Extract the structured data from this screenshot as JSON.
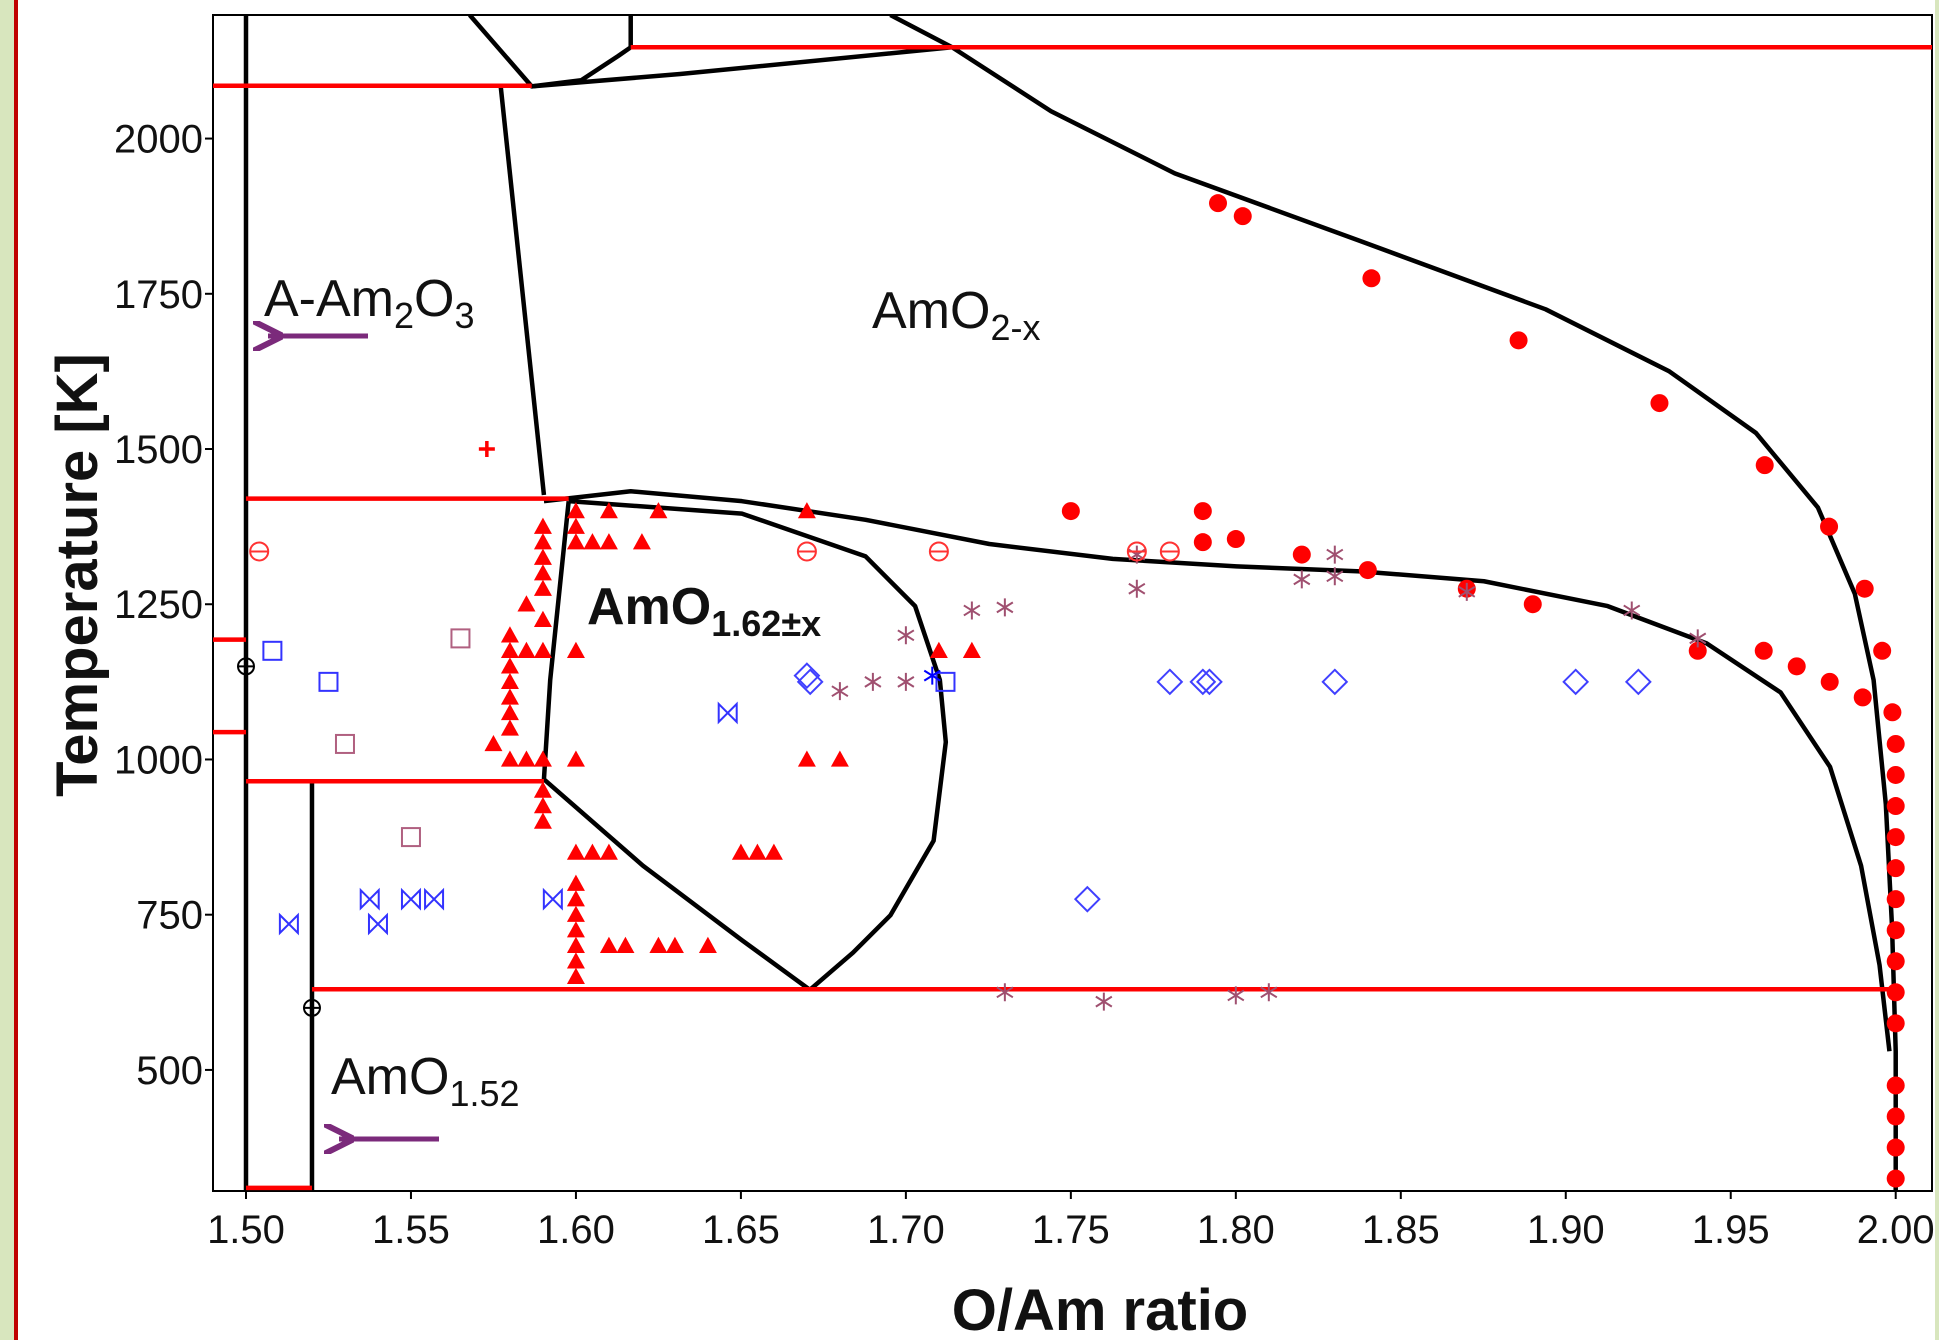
{
  "chart_data": {
    "type": "scatter",
    "x_label": "O/Am ratio",
    "y_label": "Temperature [K]",
    "xlim": [
      1.49,
      2.011
    ],
    "ylim": [
      305,
      2199
    ],
    "xticks": [
      {
        "value": 1.5,
        "label": "1.50"
      },
      1.55,
      {
        "value": 1.6,
        "label": "1.60"
      },
      1.65,
      {
        "value": 1.7,
        "label": "1.70"
      },
      1.75,
      {
        "value": 1.8,
        "label": "1.80"
      },
      1.85,
      {
        "value": 1.9,
        "label": "1.90"
      },
      1.95,
      {
        "value": 2.0,
        "label": "2.00"
      }
    ],
    "yticks": [
      500,
      750,
      1000,
      1250,
      1500,
      1750,
      2000
    ],
    "annotations": [
      {
        "parts": [
          "A-Am",
          "2",
          "O",
          "3"
        ],
        "bold": false
      },
      {
        "parts": [
          "AmO",
          "2-x"
        ],
        "bold": false
      },
      {
        "parts": [
          "AmO",
          "1.62±x"
        ],
        "bold": true
      },
      {
        "parts": [
          "AmO",
          "1.52"
        ],
        "bold": false
      }
    ],
    "lines": [
      {
        "color": "#000000",
        "x": [
          1.5,
          1.5
        ],
        "values": [
          305,
          2199
        ]
      },
      {
        "color": "#000000",
        "x": [
          1.52,
          1.52
        ],
        "values": [
          305,
          965
        ]
      },
      {
        "color": "#000000",
        "x": [
          1.6953,
          1.714,
          1.744,
          1.7815,
          1.8377,
          1.8939,
          1.9314,
          1.9576,
          1.9764,
          1.9876,
          1.9933,
          1.997,
          1.9989,
          2.0,
          2.0
        ],
        "values": [
          2199,
          2147,
          2044,
          1944,
          1835,
          1725,
          1625,
          1526,
          1406,
          1267,
          1128,
          928,
          729,
          530,
          305
        ]
      },
      {
        "color": "#000000",
        "x": [
          1.5903,
          1.6166,
          1.6503,
          1.6878,
          1.7253,
          1.7627,
          1.8002,
          1.8377,
          1.8752,
          1.9127,
          1.9427,
          1.9651,
          1.9801,
          1.9895,
          1.9951,
          1.9981
        ],
        "values": [
          1416,
          1432,
          1416,
          1386,
          1347,
          1323,
          1311,
          1303,
          1287,
          1247,
          1187,
          1108,
          988,
          829,
          669,
          530
        ]
      },
      {
        "color": "#000000",
        "x": [
          1.5978,
          1.6503,
          1.6878,
          1.7028,
          1.7103,
          1.7121,
          1.7084,
          1.6953,
          1.684,
          1.6709
        ],
        "values": [
          1416,
          1396,
          1327,
          1247,
          1128,
          1028,
          869,
          749,
          689,
          629
        ]
      },
      {
        "color": "#000000",
        "x": [
          1.5978,
          1.5922,
          1.5903,
          1.6203,
          1.6503,
          1.6709
        ],
        "values": [
          1416,
          1128,
          968,
          829,
          709,
          629
        ]
      },
      {
        "color": "#000000",
        "x": [
          1.5772,
          1.5903
        ],
        "values": [
          2084,
          1426
        ]
      },
      {
        "color": "#000000",
        "x": [
          1.5678,
          1.5866,
          1.6016,
          1.6128,
          1.6166,
          1.6166
        ],
        "values": [
          2199,
          2084,
          2094,
          2133,
          2147,
          2199
        ]
      },
      {
        "color": "#000000",
        "x": [
          1.5866,
          1.6316,
          1.714
        ],
        "values": [
          2084,
          2104,
          2147
        ]
      },
      {
        "color": "#ff0000",
        "x": [
          1.6166,
          2.011
        ],
        "values": [
          2147,
          2147
        ]
      },
      {
        "color": "#ff0000",
        "x": [
          1.49,
          1.5866
        ],
        "values": [
          2085,
          2085
        ]
      },
      {
        "color": "#ff0000",
        "x": [
          1.5,
          1.5978
        ],
        "values": [
          1420,
          1420
        ]
      },
      {
        "color": "#ff0000",
        "x": [
          1.5,
          1.5903
        ],
        "values": [
          965,
          965
        ]
      },
      {
        "color": "#ff0000",
        "x": [
          1.52,
          2.0
        ],
        "values": [
          630,
          630
        ]
      },
      {
        "color": "#ff0000",
        "x": [
          1.5,
          1.52
        ],
        "values": [
          310,
          310
        ]
      },
      {
        "color": "#ff0000",
        "x": [
          1.49,
          1.5
        ],
        "values": [
          1193,
          1193
        ]
      },
      {
        "color": "#ff0000",
        "x": [
          1.49,
          1.5
        ],
        "values": [
          1044,
          1044
        ]
      }
    ],
    "series": [
      {
        "marker": "circle",
        "color": "#ff0000",
        "x": [
          1.7946,
          1.8021,
          1.8411,
          1.8857,
          1.9284,
          1.9603,
          1.9798,
          1.9906,
          1.9959,
          1.999,
          2.0,
          2.0,
          2.0,
          2.0,
          2.0,
          2.0,
          2.0,
          2.0,
          2.0,
          2.0,
          2.0,
          2.0,
          2.0,
          2.0,
          1.75,
          1.79,
          1.79,
          1.8,
          1.82,
          1.84,
          1.87,
          1.89,
          1.94,
          1.96,
          1.97,
          1.98,
          1.99
        ],
        "values": [
          1896,
          1875,
          1775,
          1675,
          1574,
          1474,
          1375,
          1275,
          1175,
          1076,
          1025,
          975,
          875,
          825,
          775,
          725,
          675,
          625,
          575,
          475,
          425,
          375,
          325,
          925,
          1400,
          1400,
          1350,
          1355,
          1330,
          1305,
          1275,
          1250,
          1175,
          1175,
          1150,
          1125,
          1100
        ]
      },
      {
        "marker": "triangle",
        "color": "#ff0000",
        "x": [
          1.6,
          1.6,
          1.6,
          1.605,
          1.61,
          1.61,
          1.62,
          1.625,
          1.59,
          1.59,
          1.59,
          1.59,
          1.59,
          1.585,
          1.59,
          1.58,
          1.58,
          1.58,
          1.58,
          1.58,
          1.58,
          1.58,
          1.575,
          1.58,
          1.585,
          1.59,
          1.6,
          1.585,
          1.59,
          1.6,
          1.59,
          1.59,
          1.59,
          1.6,
          1.605,
          1.61,
          1.6,
          1.6,
          1.6,
          1.6,
          1.6,
          1.6,
          1.6,
          1.61,
          1.615,
          1.625,
          1.63,
          1.64,
          1.65,
          1.655,
          1.66,
          1.67,
          1.67,
          1.68,
          1.71,
          1.72
        ],
        "values": [
          1400,
          1375,
          1350,
          1350,
          1350,
          1400,
          1350,
          1400,
          1375,
          1350,
          1325,
          1300,
          1275,
          1250,
          1225,
          1200,
          1175,
          1150,
          1125,
          1100,
          1075,
          1050,
          1025,
          1000,
          1000,
          1000,
          1000,
          1175,
          1175,
          1175,
          950,
          925,
          900,
          850,
          850,
          850,
          800,
          775,
          750,
          725,
          700,
          675,
          650,
          700,
          700,
          700,
          700,
          700,
          850,
          850,
          850,
          1400,
          1000,
          1000,
          1175,
          1175
        ]
      },
      {
        "marker": "square",
        "color": "#3333ff",
        "x": [
          1.508,
          1.525,
          1.712
        ],
        "values": [
          1175,
          1125,
          1125
        ]
      },
      {
        "marker": "square",
        "color": "#b06080",
        "x": [
          1.565,
          1.53,
          1.55
        ],
        "values": [
          1195,
          1025,
          875
        ]
      },
      {
        "marker": "diamond",
        "color": "#4040ff",
        "x": [
          1.67,
          1.671,
          1.78,
          1.79,
          1.792,
          1.83,
          1.903,
          1.922,
          1.755
        ],
        "values": [
          1135,
          1125,
          1125,
          1125,
          1125,
          1125,
          1125,
          1125,
          775
        ]
      },
      {
        "marker": "bowtie",
        "color": "#3333ff",
        "x": [
          1.513,
          1.5375,
          1.54,
          1.55,
          1.557,
          1.593,
          1.646
        ],
        "values": [
          735,
          775,
          735,
          775,
          775,
          775,
          1075
        ]
      },
      {
        "marker": "asterisk",
        "color": "#a05070",
        "x": [
          1.68,
          1.69,
          1.7,
          1.7,
          1.72,
          1.73,
          1.77,
          1.77,
          1.82,
          1.83,
          1.83,
          1.87,
          1.92,
          1.94,
          1.73,
          1.76,
          1.8,
          1.81
        ],
        "values": [
          1110,
          1125,
          1125,
          1200,
          1240,
          1245,
          1330,
          1275,
          1290,
          1330,
          1295,
          1270,
          1240,
          1195,
          625,
          610,
          620,
          625
        ]
      },
      {
        "marker": "asterisk",
        "color": "#0000ff",
        "x": [
          1.708
        ],
        "values": [
          1135
        ]
      },
      {
        "marker": "circle-minus",
        "color": "#ff3333",
        "x": [
          1.504,
          1.67,
          1.71,
          1.77,
          1.78
        ],
        "values": [
          1335,
          1335,
          1335,
          1335,
          1335
        ]
      },
      {
        "marker": "plus",
        "color": "#ff0000",
        "x": [
          1.573
        ],
        "values": [
          1500
        ]
      },
      {
        "marker": "circle-plus",
        "color": "#000000",
        "x": [
          1.5,
          1.52
        ],
        "values": [
          1150,
          600
        ]
      }
    ]
  }
}
